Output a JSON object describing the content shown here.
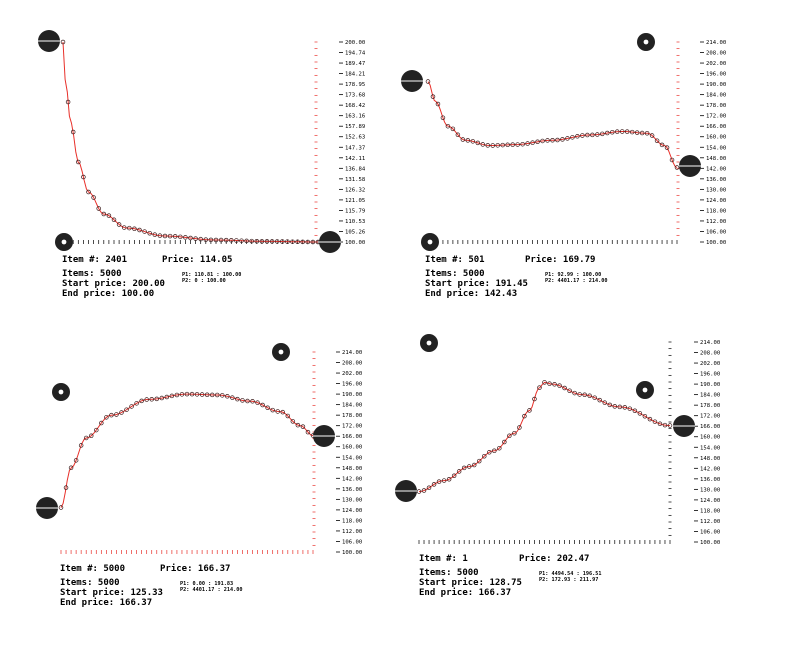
{
  "colors": {
    "curve": "#e8302a",
    "point": "#3a1a1a",
    "handle": "#222222",
    "axis": "#000000"
  },
  "chart_data": [
    {
      "type": "line",
      "ylim": [
        100,
        200
      ],
      "tick_labels": [
        "200.00",
        "194.74",
        "189.47",
        "184.21",
        "178.95",
        "173.68",
        "168.42",
        "163.16",
        "157.89",
        "152.63",
        "147.37",
        "142.11",
        "136.84",
        "131.58",
        "126.32",
        "121.05",
        "115.79",
        "110.53",
        "105.26",
        "100.00"
      ],
      "curve": [
        [
          0,
          200
        ],
        [
          0.01,
          180
        ],
        [
          0.03,
          160
        ],
        [
          0.06,
          140
        ],
        [
          0.1,
          125
        ],
        [
          0.16,
          114
        ],
        [
          0.25,
          107
        ],
        [
          0.4,
          103
        ],
        [
          0.6,
          101
        ],
        [
          0.8,
          100.3
        ],
        [
          1,
          100
        ]
      ],
      "item_label": "Item #:",
      "item_value": "2401",
      "price_label": "Price:",
      "price_value": "114.05",
      "items_label": "Items:",
      "items_value": "5000",
      "start_label": "Start price:",
      "start_value": "200.00",
      "end_label": "End price:",
      "end_value": "100.00",
      "p1_label": "P1:",
      "p1_value": "110.81 : 100.00",
      "p2_label": "P2:",
      "p2_value": "0 : 100.00"
    },
    {
      "type": "line",
      "ylim": [
        100,
        214
      ],
      "tick_labels": [
        "214.00",
        "208.00",
        "202.00",
        "196.00",
        "190.00",
        "184.00",
        "178.00",
        "172.00",
        "166.00",
        "160.00",
        "154.00",
        "148.00",
        "142.00",
        "136.00",
        "130.00",
        "124.00",
        "118.00",
        "112.00",
        "106.00",
        "100.00"
      ],
      "curve": [
        [
          0,
          191.45
        ],
        [
          0.03,
          180
        ],
        [
          0.08,
          166
        ],
        [
          0.15,
          158
        ],
        [
          0.25,
          155
        ],
        [
          0.35,
          155.5
        ],
        [
          0.5,
          158
        ],
        [
          0.65,
          161
        ],
        [
          0.78,
          163
        ],
        [
          0.88,
          162
        ],
        [
          0.95,
          155
        ],
        [
          1,
          142.43
        ]
      ],
      "item_label": "Item #:",
      "item_value": "501",
      "price_label": "Price:",
      "price_value": "169.79",
      "items_label": "Items:",
      "items_value": "5000",
      "start_label": "Start price:",
      "start_value": "191.45",
      "end_label": "End price:",
      "end_value": "142.43",
      "p1_label": "P1:",
      "p1_value": "92.99 : 100.00",
      "p2_label": "P2:",
      "p2_value": "4401.17 : 214.00"
    },
    {
      "type": "line",
      "ylim": [
        100,
        214
      ],
      "tick_labels": [
        "214.00",
        "208.00",
        "202.00",
        "196.00",
        "190.00",
        "184.00",
        "178.00",
        "172.00",
        "166.00",
        "160.00",
        "154.00",
        "148.00",
        "142.00",
        "136.00",
        "130.00",
        "124.00",
        "118.00",
        "112.00",
        "106.00",
        "100.00"
      ],
      "curve": [
        [
          0,
          125.33
        ],
        [
          0.04,
          148
        ],
        [
          0.1,
          165
        ],
        [
          0.2,
          178
        ],
        [
          0.35,
          187
        ],
        [
          0.5,
          190
        ],
        [
          0.62,
          189.5
        ],
        [
          0.75,
          186
        ],
        [
          0.87,
          180
        ],
        [
          0.95,
          172
        ],
        [
          1,
          166.37
        ]
      ],
      "item_label": "Item #:",
      "item_value": "5000",
      "price_label": "Price:",
      "price_value": "166.37",
      "items_label": "Items:",
      "items_value": "5000",
      "start_label": "Start price:",
      "start_value": "125.33",
      "end_label": "End price:",
      "end_value": "166.37",
      "p1_label": "P1:",
      "p1_value": "0.00 : 191.83",
      "p2_label": "P2:",
      "p2_value": "4401.17 : 214.00"
    },
    {
      "type": "line",
      "ylim": [
        100,
        214
      ],
      "tick_labels": [
        "214.00",
        "208.00",
        "202.00",
        "196.00",
        "190.00",
        "184.00",
        "178.00",
        "172.00",
        "166.00",
        "160.00",
        "154.00",
        "148.00",
        "142.00",
        "136.00",
        "130.00",
        "124.00",
        "118.00",
        "112.00",
        "106.00",
        "100.00"
      ],
      "curve": [
        [
          0,
          128.75
        ],
        [
          0.1,
          135
        ],
        [
          0.2,
          143
        ],
        [
          0.3,
          152
        ],
        [
          0.38,
          162
        ],
        [
          0.44,
          175
        ],
        [
          0.48,
          188
        ],
        [
          0.5,
          191
        ],
        [
          0.53,
          190
        ],
        [
          0.65,
          184
        ],
        [
          0.8,
          177
        ],
        [
          1,
          166.37
        ]
      ],
      "item_label": "Item #:",
      "item_value": "1",
      "price_label": "Price:",
      "price_value": "202.47",
      "items_label": "Items:",
      "items_value": "5000",
      "start_label": "Start price:",
      "start_value": "128.75",
      "end_label": "End price:",
      "end_value": "166.37",
      "p1_label": "P1:",
      "p1_value": "4494.54 : 196.51",
      "p2_label": "P2:",
      "p2_value": "172.93 : 211.97"
    }
  ]
}
